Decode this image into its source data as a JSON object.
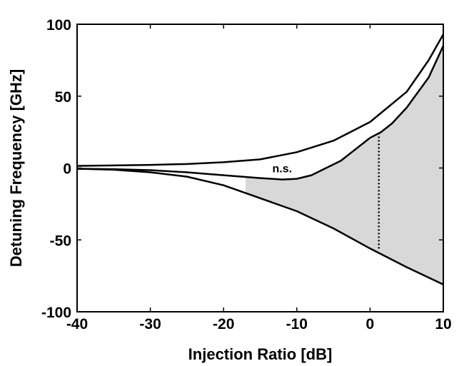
{
  "chart_data": {
    "type": "line",
    "title": "",
    "xlabel": "Injection Ratio [dB]",
    "ylabel": "Detuning Frequency [GHz]",
    "xlim": [
      -40,
      10
    ],
    "ylim": [
      -100,
      100
    ],
    "xticks": [
      -40,
      -30,
      -20,
      -10,
      0,
      10
    ],
    "yticks": [
      100,
      50,
      0,
      -50,
      -100
    ],
    "xtick_labels": [
      "-40",
      "-30",
      "-20",
      "-10",
      "0",
      "10"
    ],
    "ytick_labels": [
      "100",
      "50",
      "0",
      "-50",
      "-100"
    ],
    "grid": false,
    "legend": "none",
    "series": [
      {
        "x": [
          -40,
          -35,
          -30,
          -25,
          -20,
          -15,
          -10,
          -5,
          0,
          5,
          8,
          10
        ],
        "y": [
          1.5,
          1.8,
          2.2,
          2.8,
          4,
          6,
          11,
          19,
          32,
          53,
          75,
          93
        ]
      },
      {
        "x": [
          -40,
          -35,
          -30,
          -25,
          -20,
          -15,
          -12,
          -10,
          -8,
          -6,
          -4,
          -2,
          0,
          1.5,
          3,
          5,
          8,
          10
        ],
        "y": [
          -0.5,
          -0.8,
          -1.5,
          -3,
          -5,
          -7,
          -8,
          -7.5,
          -5,
          0,
          5,
          13,
          21,
          25,
          31,
          42,
          63,
          85
        ]
      },
      {
        "x": [
          -40,
          -35,
          -30,
          -25,
          -20,
          -15,
          -10,
          -5,
          0,
          5,
          10
        ],
        "y": [
          -0.5,
          -1.2,
          -3,
          -6,
          -12,
          -21,
          -30,
          -42,
          -56,
          -69,
          -81
        ]
      }
    ],
    "shaded_region": {
      "x_from": -17,
      "x_to": 10,
      "description_color": "#d9d9d9"
    },
    "marker_line": {
      "x": 1.2,
      "y_from": -56,
      "y_to": 24
    },
    "annotations": [
      {
        "text": "n.s.",
        "x": -12,
        "y": 0
      }
    ]
  },
  "colors": {
    "line": "#000000",
    "fill": "#d8d8d8",
    "background": "#ffffff"
  }
}
